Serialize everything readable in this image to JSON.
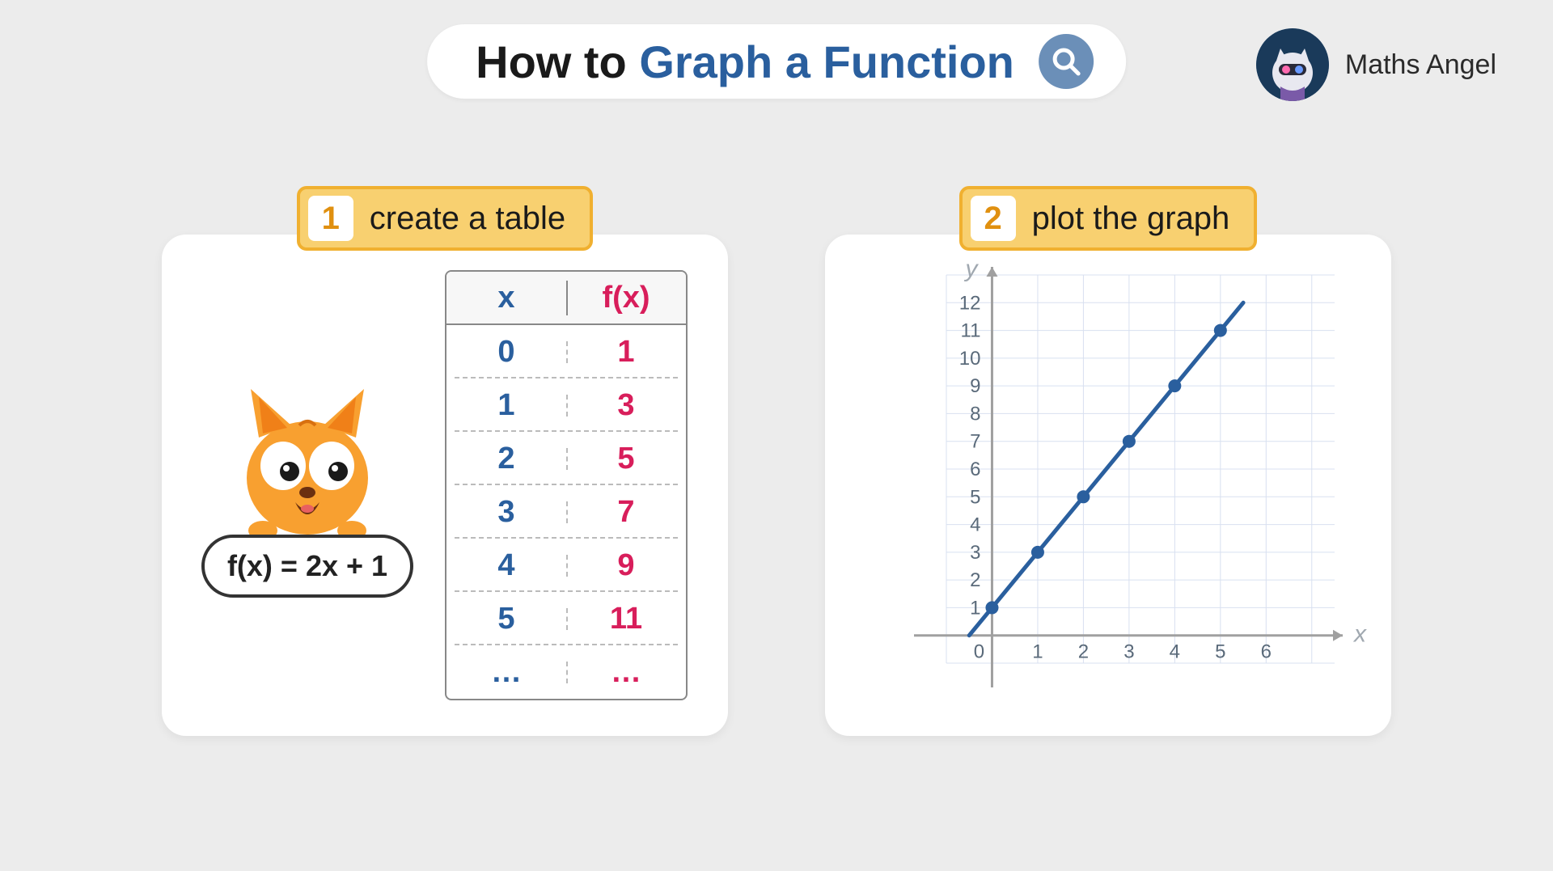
{
  "brand": {
    "name": "Maths Angel"
  },
  "title": {
    "prefix": "How to ",
    "accent": "Graph a Function"
  },
  "steps": [
    {
      "num": "1",
      "label": "create a table"
    },
    {
      "num": "2",
      "label": "plot the graph"
    }
  ],
  "formula": "f(x)  =  2x + 1",
  "table": {
    "header": {
      "x": "x",
      "fx": "f(x)"
    },
    "rows": [
      {
        "x": "0",
        "fx": "1"
      },
      {
        "x": "1",
        "fx": "3"
      },
      {
        "x": "2",
        "fx": "5"
      },
      {
        "x": "3",
        "fx": "7"
      },
      {
        "x": "4",
        "fx": "9"
      },
      {
        "x": "5",
        "fx": "11"
      },
      {
        "x": "…",
        "fx": "…"
      }
    ],
    "x_color": "#2a5f9e",
    "fx_color": "#d81e5b"
  },
  "graph": {
    "type": "line",
    "x_label": "x",
    "y_label": "y",
    "xlim": [
      -1,
      7.5
    ],
    "ylim": [
      -1,
      13
    ],
    "x_ticks": [
      0,
      1,
      2,
      3,
      4,
      5,
      6
    ],
    "y_ticks": [
      1,
      2,
      3,
      4,
      5,
      6,
      7,
      8,
      9,
      10,
      11,
      12
    ],
    "grid_color": "#d8e0f0",
    "axis_color": "#a0a0a0",
    "line_color": "#2a5f9e",
    "point_color": "#2a5f9e",
    "line_width": 5,
    "point_radius": 8,
    "points": [
      [
        0,
        1
      ],
      [
        1,
        3
      ],
      [
        2,
        5
      ],
      [
        3,
        7
      ],
      [
        4,
        9
      ],
      [
        5,
        11
      ]
    ],
    "line_extent": [
      [
        -0.5,
        0
      ],
      [
        5.5,
        12
      ]
    ],
    "tick_font_color": "#5a6a7a",
    "label_font_color": "#a0a8b0"
  },
  "colors": {
    "page_bg": "#ececec",
    "card_bg": "#ffffff",
    "step_bg": "#f8d070",
    "step_border": "#f0b030",
    "step_num_color": "#e09010",
    "title_accent": "#2a5f9e",
    "search_bg": "#6b8fb8"
  }
}
